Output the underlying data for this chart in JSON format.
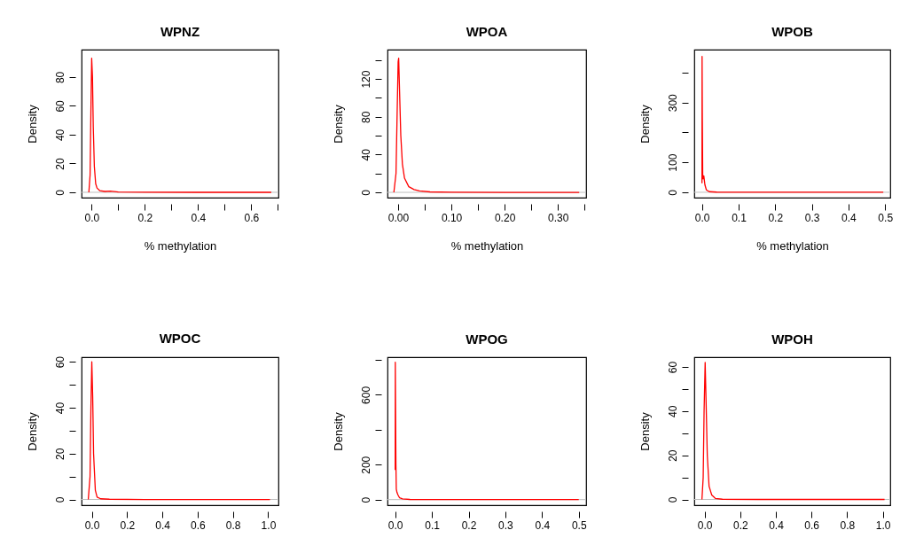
{
  "chart_data": [
    {
      "type": "line",
      "title": "WPNZ",
      "xlabel": "% methylation",
      "ylabel": "Density",
      "line_style": "solid",
      "x": [
        -0.0106,
        -0.006,
        -0.003,
        0,
        0.003,
        0.006,
        0.01,
        0.015,
        0.02,
        0.03,
        0.05,
        0.07,
        0.1,
        0.2,
        0.4,
        0.675
      ],
      "series": [
        {
          "color": "#ff0000",
          "values": [
            0,
            12,
            55,
            93,
            80,
            45,
            18,
            6,
            3,
            1.2,
            0.6,
            0.8,
            0.2,
            0.05,
            0,
            0
          ]
        }
      ],
      "xlim": [
        -0.038,
        0.702
      ],
      "ylim": [
        -3.7,
        99
      ],
      "xticks": [
        {
          "value": 0,
          "label": "0.0"
        },
        {
          "value": 0.1,
          "label": null
        },
        0.2,
        {
          "value": 0.3,
          "label": null
        },
        0.4,
        {
          "value": 0.5,
          "label": null
        },
        0.6,
        {
          "value": 0.7,
          "label": null
        }
      ],
      "yticks": [
        0,
        20,
        40,
        60,
        80
      ],
      "ref_lines": [
        {
          "axis": "y",
          "value": 0,
          "color": "#bebebe"
        }
      ]
    },
    {
      "type": "line",
      "title": "WPOA",
      "xlabel": "% methylation",
      "ylabel": "Density",
      "line_style": "solid",
      "x": [
        -0.008,
        -0.004,
        -0.002,
        0,
        0.001,
        0.003,
        0.005,
        0.008,
        0.012,
        0.02,
        0.03,
        0.04,
        0.06,
        0.1,
        0.2,
        0.34
      ],
      "series": [
        {
          "color": "#ff0000",
          "values": [
            0,
            20,
            80,
            138,
            142,
            100,
            60,
            30,
            15,
            6,
            3,
            1.5,
            0.5,
            0.2,
            0,
            0
          ]
        }
      ],
      "xlim": [
        -0.02,
        0.353
      ],
      "ylim": [
        -5.6,
        151
      ],
      "xticks": [
        {
          "value": 0,
          "label": "0.00"
        },
        {
          "value": 0.05,
          "label": null
        },
        {
          "value": 0.1,
          "label": "0.10"
        },
        {
          "value": 0.15,
          "label": null
        },
        {
          "value": 0.2,
          "label": "0.20"
        },
        {
          "value": 0.25,
          "label": null
        },
        {
          "value": 0.3,
          "label": "0.30"
        },
        {
          "value": 0.35,
          "label": null
        }
      ],
      "yticks": [
        0,
        {
          "value": 20,
          "label": null
        },
        40,
        {
          "value": 60,
          "label": null
        },
        80,
        {
          "value": 100,
          "label": null
        },
        120,
        {
          "value": 140,
          "label": null
        }
      ],
      "ref_lines": [
        {
          "axis": "y",
          "value": 0,
          "color": "#bebebe"
        }
      ]
    },
    {
      "type": "line",
      "title": "WPOB",
      "xlabel": "% methylation",
      "ylabel": "Density",
      "line_style": "solid",
      "x": [
        0,
        0.0003,
        0.001,
        0.002,
        0.003,
        0.005,
        0.008,
        0.012,
        0.02,
        0.04,
        0.1,
        0.3,
        0.495
      ],
      "series": [
        {
          "color": "#ff0000",
          "values": [
            30,
            454,
            250,
            60,
            45,
            55,
            25,
            8,
            2,
            0.5,
            0,
            0,
            0
          ]
        }
      ],
      "xlim": [
        -0.021,
        0.514
      ],
      "ylim": [
        -18,
        477
      ],
      "xticks": [
        {
          "value": 0,
          "label": "0.0"
        },
        0.1,
        0.2,
        0.3,
        0.4,
        0.5
      ],
      "yticks": [
        0,
        100,
        {
          "value": 200,
          "label": null
        },
        300,
        {
          "value": 400,
          "label": null
        }
      ],
      "ref_lines": [
        {
          "axis": "y",
          "value": 0,
          "color": "#bebebe"
        }
      ]
    },
    {
      "type": "line",
      "title": "WPOC",
      "ylabel": "Density",
      "line_style": "solid",
      "x": [
        -0.02,
        -0.01,
        -0.005,
        0,
        0.005,
        0.01,
        0.02,
        0.03,
        0.05,
        0.1,
        0.3,
        0.6,
        1.0,
        1.01
      ],
      "series": [
        {
          "color": "#ff0000",
          "values": [
            0,
            10,
            40,
            60,
            45,
            20,
            4,
            1,
            0.3,
            0.1,
            0,
            0,
            0,
            0
          ]
        }
      ],
      "xlim": [
        -0.058,
        1.058
      ],
      "ylim": [
        -2.5,
        62
      ],
      "xticks": [
        {
          "value": 0,
          "label": "0.0"
        },
        0.2,
        0.4,
        0.6,
        0.8,
        {
          "value": 1,
          "label": "1.0"
        }
      ],
      "yticks": [
        0,
        {
          "value": 10,
          "label": null
        },
        20,
        {
          "value": 30,
          "label": null
        },
        40,
        {
          "value": 50,
          "label": null
        },
        60
      ],
      "ref_lines": [
        {
          "axis": "y",
          "value": 0,
          "color": "#bebebe"
        }
      ]
    },
    {
      "type": "line",
      "title": "WPOG",
      "ylabel": "Density",
      "line_style": "solid",
      "x": [
        0,
        0.0003,
        0.002,
        0.003,
        0.005,
        0.008,
        0.012,
        0.02,
        0.04,
        0.1,
        0.3,
        0.5
      ],
      "series": [
        {
          "color": "#ff0000",
          "values": [
            170,
            786,
            200,
            60,
            40,
            25,
            10,
            4,
            1,
            0,
            0,
            0
          ]
        }
      ],
      "xlim": [
        -0.021,
        0.52
      ],
      "ylim": [
        -32,
        815
      ],
      "xticks": [
        {
          "value": 0,
          "label": "0.0"
        },
        0.1,
        0.2,
        0.3,
        0.4,
        0.5
      ],
      "yticks": [
        0,
        200,
        {
          "value": 400,
          "label": null
        },
        600,
        {
          "value": 800,
          "label": null
        }
      ],
      "ref_lines": [
        {
          "axis": "y",
          "value": 0,
          "color": "#bebebe"
        }
      ]
    },
    {
      "type": "line",
      "title": "WPOH",
      "ylabel": "Density",
      "line_style": "solid",
      "x": [
        -0.015,
        -0.008,
        -0.003,
        0.003,
        0.008,
        0.015,
        0.025,
        0.04,
        0.06,
        0.1,
        0.3,
        0.6,
        1.01
      ],
      "series": [
        {
          "color": "#ff0000",
          "values": [
            0,
            10,
            40,
            62,
            45,
            20,
            6,
            2,
            0.5,
            0.1,
            0,
            0,
            0
          ]
        }
      ],
      "xlim": [
        -0.058,
        1.042
      ],
      "ylim": [
        -2.6,
        64.4
      ],
      "xticks": [
        {
          "value": 0,
          "label": "0.0"
        },
        0.2,
        0.4,
        0.6,
        0.8,
        {
          "value": 1,
          "label": "1.0"
        }
      ],
      "yticks": [
        0,
        {
          "value": 10,
          "label": null
        },
        20,
        {
          "value": 30,
          "label": null
        },
        40,
        {
          "value": 50,
          "label": null
        },
        60
      ],
      "ref_lines": [
        {
          "axis": "y",
          "value": 0,
          "color": "#bebebe"
        }
      ]
    }
  ]
}
